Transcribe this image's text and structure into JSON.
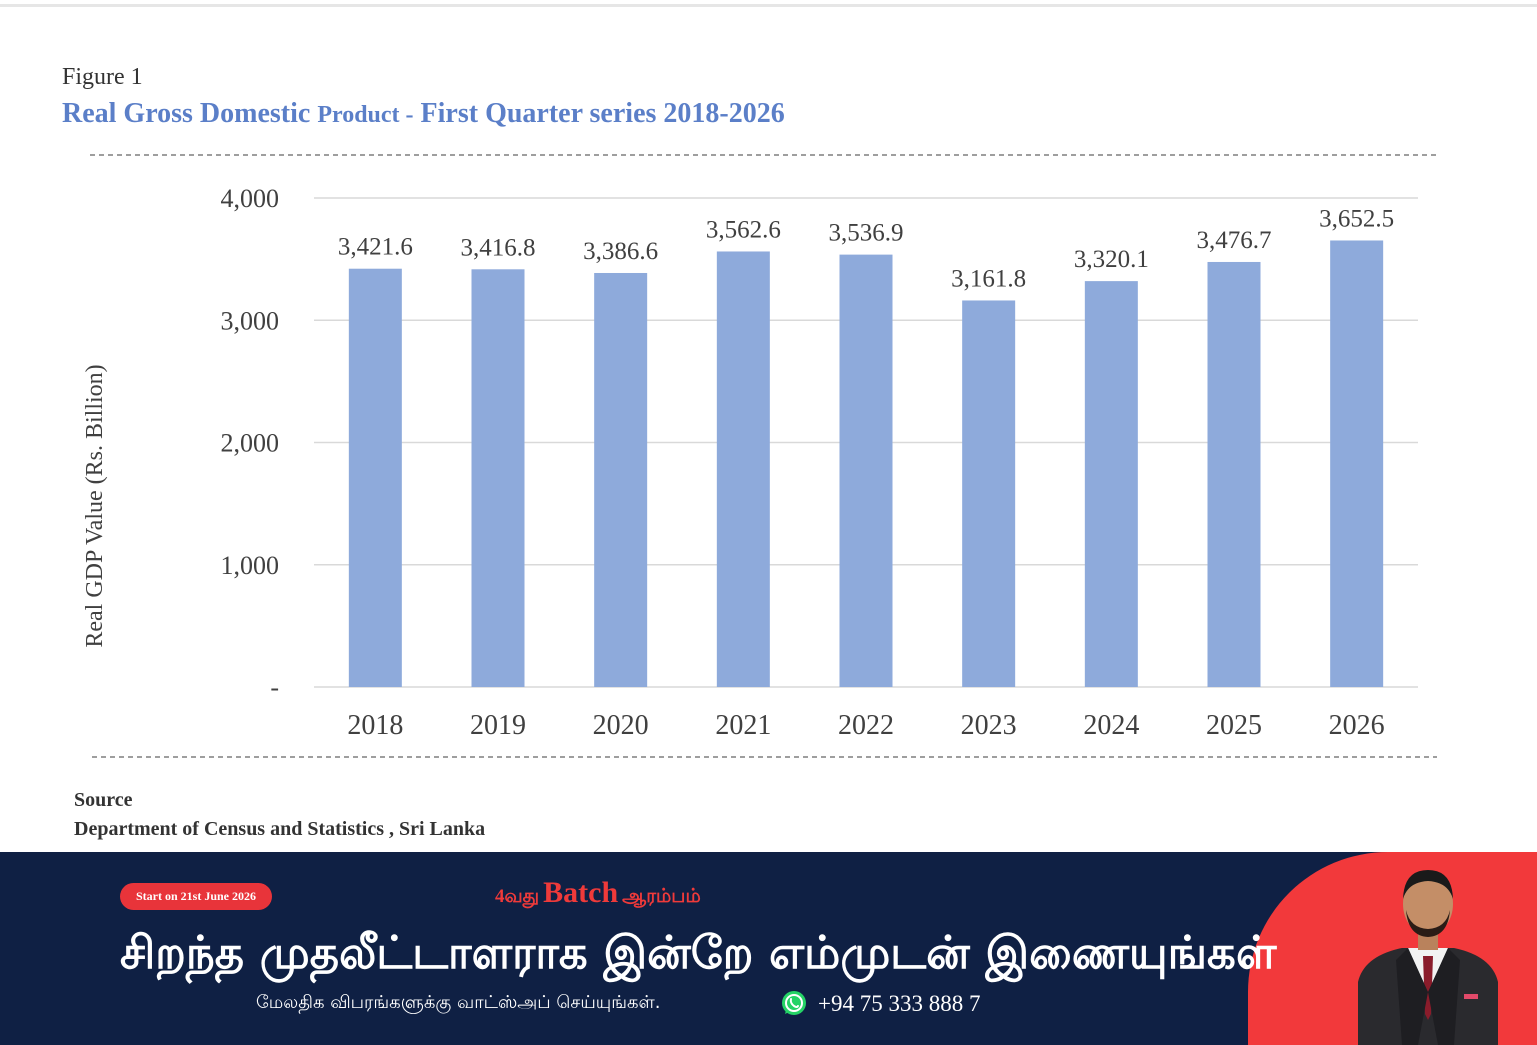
{
  "figure": {
    "label": "Figure 1",
    "title_main": "Real Gross Domestic",
    "title_small": "Product -",
    "title_rest": "First Quarter series  2018-2026"
  },
  "source": {
    "heading": "Source",
    "text": "Department of Census and Statistics , Sri Lanka"
  },
  "chart_data": {
    "type": "bar",
    "categories": [
      "2018",
      "2019",
      "2020",
      "2021",
      "2022",
      "2023",
      "2024",
      "2025",
      "2026"
    ],
    "values": [
      3421.6,
      3416.8,
      3386.6,
      3562.6,
      3536.9,
      3161.8,
      3320.1,
      3476.7,
      3652.5
    ],
    "value_labels": [
      "3,421.6",
      "3,416.8",
      "3,386.6",
      "3,562.6",
      "3,536.9",
      "3,161.8",
      "3,320.1",
      "3,476.7",
      "3,652.5"
    ],
    "ylabel": "Real GDP Value (Rs. Billion)",
    "yticks": [
      0,
      1000,
      2000,
      3000,
      4000
    ],
    "ytick_labels": [
      "-",
      "1,000",
      "2,000",
      "3,000",
      "4,000"
    ],
    "ylim": [
      0,
      4000
    ],
    "grid": true,
    "bar_color": "#8eaadb"
  },
  "banner": {
    "pill": "Start on 21st June 2026",
    "batch_prefix": "4வது",
    "batch_main": "Batch",
    "batch_suffix": "ஆரம்பம்",
    "headline": "சிறந்த முதலீட்டாளராக இன்றே எம்முடன் இணையுங்கள்",
    "subline": "மேலதிக விபரங்களுக்கு வாட்ஸ்அப் செய்யுங்கள்.",
    "phone": "+94 75 333 888 7",
    "colors": {
      "navy": "#0f2044",
      "red": "#f2393b",
      "whatsapp": "#25d366"
    }
  }
}
